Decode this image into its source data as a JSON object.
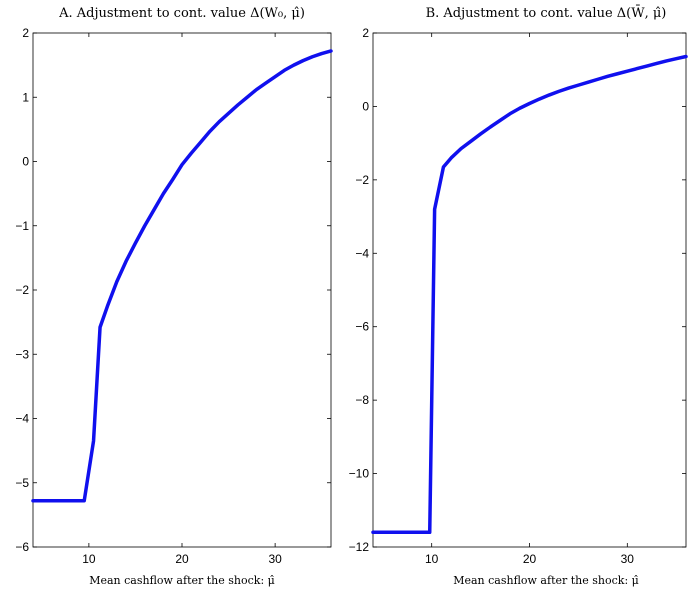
{
  "chart_data": [
    {
      "type": "line",
      "title": "A. Adjustment to cont. value Δ(W₀, μ̂)",
      "xlabel": "Mean cashflow after the shock: μ̂",
      "ylabel": "",
      "xlim": [
        4,
        36
      ],
      "ylim": [
        -6,
        2
      ],
      "xticks": [
        10,
        20,
        30
      ],
      "yticks": [
        2,
        1,
        0,
        -1,
        -2,
        -3,
        -4,
        -5,
        -6
      ],
      "ytick_labels": [
        "2",
        "1",
        "0",
        "−1",
        "−2",
        "−3",
        "−4",
        "−5",
        "−6"
      ],
      "grid": false,
      "series": [
        {
          "color": "#1010ee",
          "x": [
            4,
            9.5,
            10.5,
            11.2,
            12,
            13,
            14,
            15,
            16,
            17,
            18,
            19,
            20,
            21,
            22,
            23,
            24,
            25,
            26,
            27,
            28,
            29,
            30,
            31,
            32,
            33,
            34,
            35,
            36
          ],
          "y": [
            -5.28,
            -5.28,
            -4.35,
            -2.58,
            -2.25,
            -1.87,
            -1.55,
            -1.27,
            -1.0,
            -0.75,
            -0.5,
            -0.28,
            -0.05,
            0.13,
            0.3,
            0.47,
            0.62,
            0.75,
            0.88,
            1.0,
            1.12,
            1.22,
            1.32,
            1.42,
            1.5,
            1.57,
            1.63,
            1.68,
            1.72
          ]
        }
      ]
    },
    {
      "type": "line",
      "title": "B. Adjustment to cont. value Δ(W̄, μ̂)",
      "xlabel": "Mean cashflow after the shock: μ̂",
      "ylabel": "",
      "xlim": [
        4,
        36
      ],
      "ylim": [
        -12,
        2
      ],
      "xticks": [
        10,
        20,
        30
      ],
      "yticks": [
        2,
        0,
        -2,
        -4,
        -6,
        -8,
        -10,
        -12
      ],
      "ytick_labels": [
        "2",
        "0",
        "−2",
        "−4",
        "−6",
        "−8",
        "−10",
        "−12"
      ],
      "grid": false,
      "series": [
        {
          "color": "#1010ee",
          "x": [
            4,
            9.8,
            10.3,
            11.2,
            12,
            13,
            14,
            15,
            16,
            17,
            18,
            19,
            20,
            21,
            22,
            23,
            24,
            25,
            26,
            27,
            28,
            29,
            30,
            31,
            32,
            33,
            34,
            35,
            36
          ],
          "y": [
            -11.6,
            -11.6,
            -2.8,
            -1.65,
            -1.4,
            -1.15,
            -0.95,
            -0.75,
            -0.56,
            -0.38,
            -0.2,
            -0.05,
            0.08,
            0.2,
            0.31,
            0.41,
            0.5,
            0.58,
            0.66,
            0.74,
            0.82,
            0.89,
            0.96,
            1.03,
            1.1,
            1.17,
            1.24,
            1.3,
            1.36
          ]
        }
      ]
    }
  ]
}
